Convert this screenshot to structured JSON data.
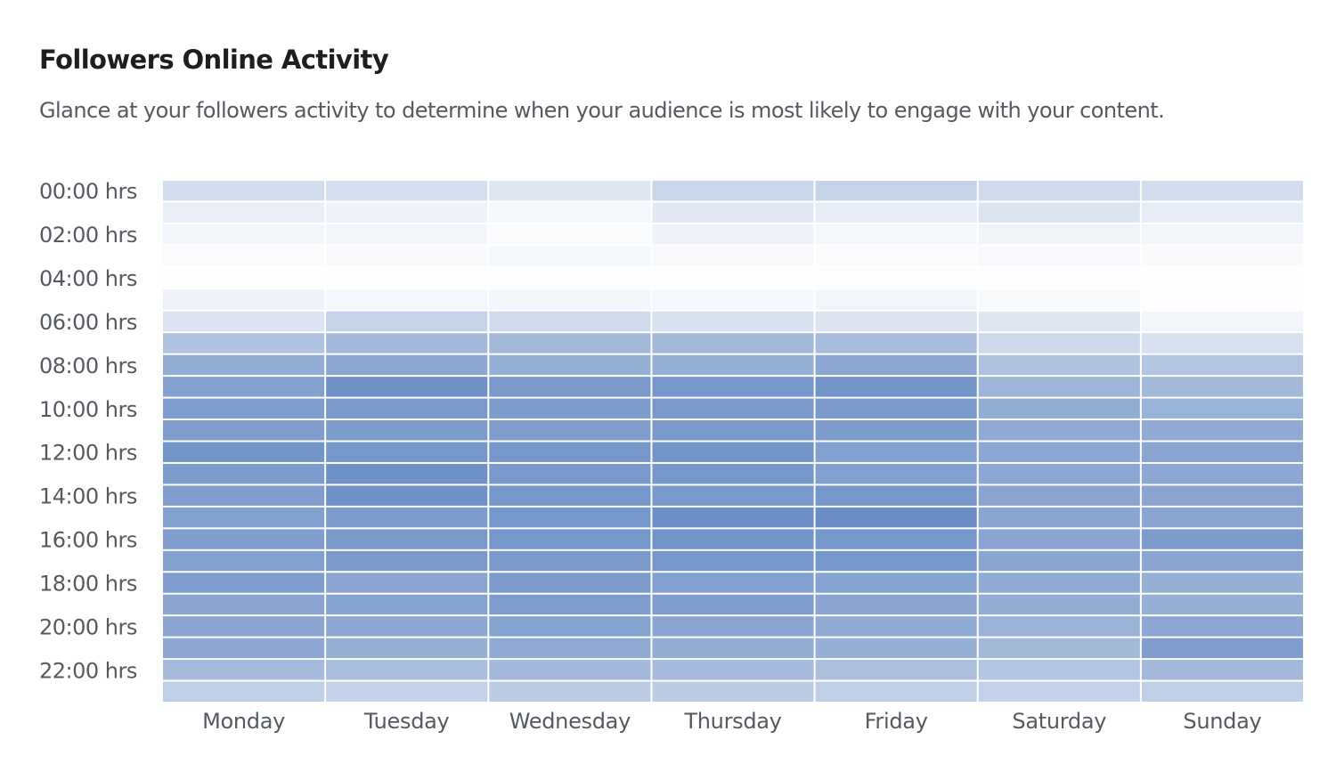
{
  "header": {
    "title": "Followers Online Activity",
    "subtitle": "Glance at your followers activity to determine when your audience is most likely to engage with your content."
  },
  "colors": {
    "cell_base": "#ffffff",
    "cell_max": "#5f86c0",
    "text": "#555a60",
    "title": "#1e1e1e"
  },
  "chart_data": {
    "type": "heatmap",
    "title": "Followers Online Activity",
    "x": [
      "Monday",
      "Tuesday",
      "Wednesday",
      "Thursday",
      "Friday",
      "Saturday",
      "Sunday"
    ],
    "y": [
      "00:00",
      "01:00",
      "02:00",
      "03:00",
      "04:00",
      "05:00",
      "06:00",
      "07:00",
      "08:00",
      "09:00",
      "10:00",
      "11:00",
      "12:00",
      "13:00",
      "14:00",
      "15:00",
      "16:00",
      "17:00",
      "18:00",
      "19:00",
      "20:00",
      "21:00",
      "22:00",
      "23:00"
    ],
    "y_tick_labels": [
      "00:00 hrs",
      "02:00 hrs",
      "04:00 hrs",
      "06:00 hrs",
      "08:00 hrs",
      "10:00 hrs",
      "12:00 hrs",
      "14:00 hrs",
      "16:00 hrs",
      "18:00 hrs",
      "20:00 hrs",
      "22:00 hrs"
    ],
    "value_range": [
      0,
      100
    ],
    "values": [
      [
        28,
        27,
        20,
        33,
        36,
        30,
        28
      ],
      [
        14,
        10,
        7,
        18,
        16,
        22,
        16
      ],
      [
        8,
        8,
        3,
        10,
        6,
        9,
        8
      ],
      [
        3,
        4,
        6,
        4,
        3,
        5,
        4
      ],
      [
        1,
        1,
        2,
        2,
        2,
        2,
        1
      ],
      [
        10,
        7,
        8,
        7,
        8,
        4,
        2
      ],
      [
        22,
        36,
        30,
        25,
        22,
        20,
        8
      ],
      [
        50,
        58,
        58,
        58,
        55,
        32,
        25
      ],
      [
        68,
        72,
        66,
        66,
        72,
        50,
        48
      ],
      [
        78,
        90,
        84,
        86,
        88,
        62,
        58
      ],
      [
        80,
        84,
        82,
        84,
        84,
        68,
        64
      ],
      [
        80,
        82,
        80,
        84,
        82,
        70,
        70
      ],
      [
        88,
        86,
        86,
        88,
        78,
        72,
        74
      ],
      [
        82,
        90,
        84,
        86,
        78,
        72,
        72
      ],
      [
        80,
        90,
        86,
        84,
        86,
        74,
        74
      ],
      [
        78,
        82,
        86,
        92,
        94,
        74,
        74
      ],
      [
        80,
        84,
        86,
        88,
        86,
        74,
        82
      ],
      [
        78,
        84,
        84,
        86,
        86,
        74,
        74
      ],
      [
        80,
        74,
        82,
        78,
        76,
        70,
        66
      ],
      [
        74,
        76,
        80,
        80,
        74,
        68,
        66
      ],
      [
        74,
        72,
        76,
        74,
        70,
        64,
        72
      ],
      [
        72,
        66,
        70,
        68,
        66,
        58,
        80
      ],
      [
        56,
        54,
        58,
        56,
        52,
        48,
        58
      ],
      [
        40,
        38,
        42,
        42,
        40,
        38,
        40
      ]
    ]
  }
}
